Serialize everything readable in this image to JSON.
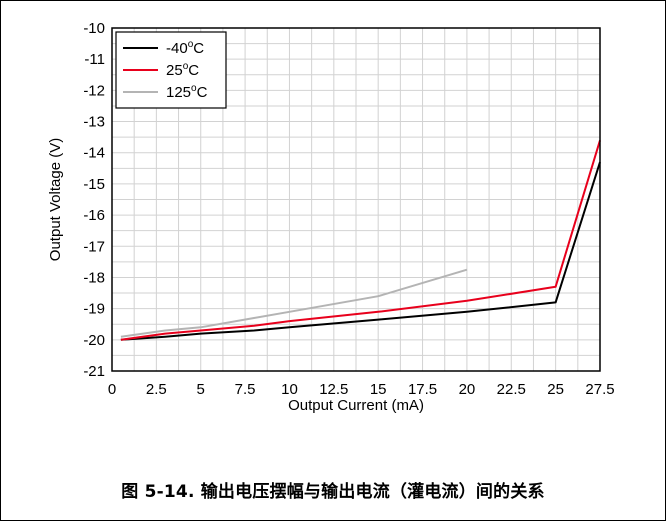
{
  "figure": {
    "caption": "图 5-14. 输出电压摆幅与输出电流（灌电流）间的关系"
  },
  "chart_data": {
    "type": "line",
    "title": "",
    "xlabel": "Output Current (mA)",
    "ylabel": "Output Voltage (V)",
    "xlim": [
      0,
      27.5
    ],
    "ylim": [
      -21,
      -10
    ],
    "xticks": [
      0,
      2.5,
      5,
      7.5,
      10,
      12.5,
      15,
      17.5,
      20,
      22.5,
      25,
      27.5
    ],
    "xtick_labels": [
      "0",
      "2.5",
      "5",
      "7.5",
      "10",
      "12.5",
      "15",
      "17.5",
      "20",
      "22.5",
      "25",
      "27.5"
    ],
    "yticks": [
      -10,
      -11,
      -12,
      -13,
      -14,
      -15,
      -16,
      -17,
      -18,
      -19,
      -20,
      -21
    ],
    "ytick_labels": [
      "-10",
      "-11",
      "-12",
      "-13",
      "-14",
      "-15",
      "-16",
      "-17",
      "-18",
      "-19",
      "-20",
      "-21"
    ],
    "grid": true,
    "legend": "top-left",
    "series": [
      {
        "name": "-40°C",
        "name_base": "-40",
        "name_sup": "o",
        "name_unit": "C",
        "color": "#000000",
        "x": [
          0.5,
          3,
          5,
          8,
          10,
          15,
          20,
          25,
          27.5
        ],
        "y": [
          -20.0,
          -19.9,
          -19.8,
          -19.7,
          -19.6,
          -19.35,
          -19.1,
          -18.8,
          -14.3
        ]
      },
      {
        "name": "25°C",
        "name_base": "25",
        "name_sup": "o",
        "name_unit": "C",
        "color": "#e8001c",
        "x": [
          0.5,
          3,
          5,
          8,
          10,
          15,
          20,
          25,
          27.5
        ],
        "y": [
          -20.0,
          -19.8,
          -19.7,
          -19.55,
          -19.4,
          -19.1,
          -18.75,
          -18.3,
          -13.6
        ]
      },
      {
        "name": "125°C",
        "name_base": "125",
        "name_sup": "o",
        "name_unit": "C",
        "color": "#b4b4b4",
        "x": [
          0.5,
          3,
          5,
          8,
          10,
          15,
          20
        ],
        "y": [
          -19.9,
          -19.7,
          -19.6,
          -19.3,
          -19.1,
          -18.6,
          -17.75
        ]
      }
    ]
  }
}
